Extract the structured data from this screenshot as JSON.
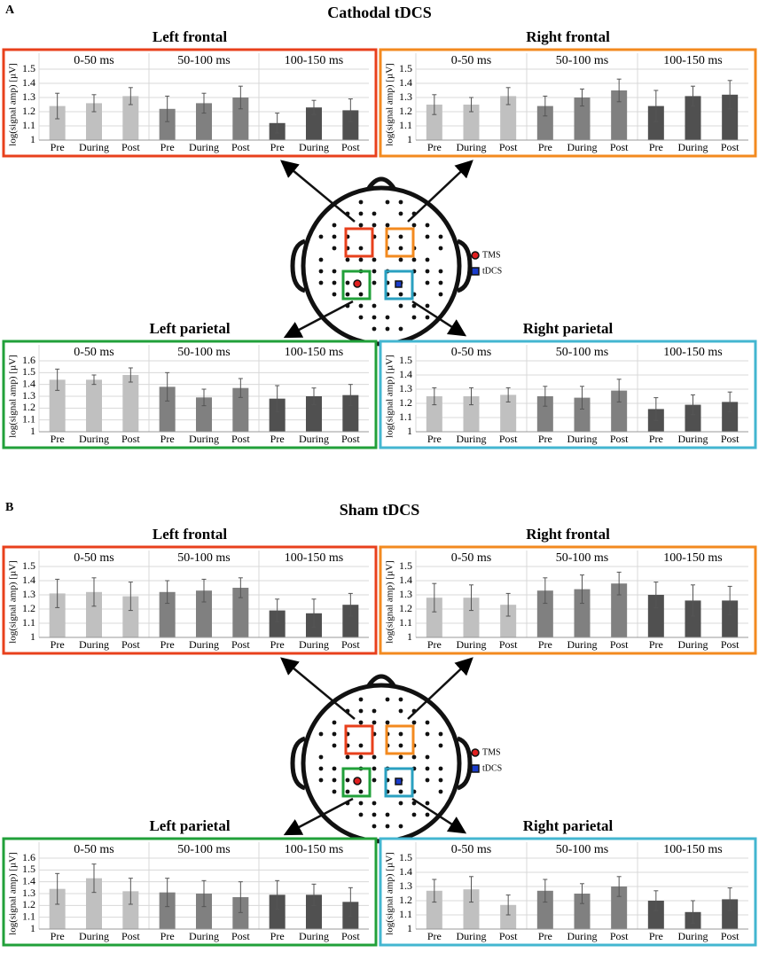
{
  "panels": [
    {
      "letter": "A",
      "title": "Cathodal tDCS"
    },
    {
      "letter": "B",
      "title": "Sham tDCS"
    }
  ],
  "legend": {
    "tms": "TMS",
    "tdcs": "tDCS"
  },
  "chart_data": [
    {
      "type": "bar",
      "title": "Left frontal",
      "ylabel": "log(signal amp) [µV]",
      "border": "#e8401c",
      "ylim": [
        1,
        1.5
      ],
      "yticks": [
        1,
        1.1,
        1.2,
        1.3,
        1.4,
        1.5
      ],
      "windows": [
        {
          "title": "0-50 ms",
          "color": "#c0c0c0",
          "categories": [
            "Pre",
            "During",
            "Post"
          ],
          "values": [
            1.24,
            1.26,
            1.31
          ],
          "errors": [
            0.09,
            0.06,
            0.06
          ]
        },
        {
          "title": "50-100 ms",
          "color": "#808080",
          "categories": [
            "Pre",
            "During",
            "Post"
          ],
          "values": [
            1.22,
            1.26,
            1.3
          ],
          "errors": [
            0.09,
            0.07,
            0.08
          ]
        },
        {
          "title": "100-150 ms",
          "color": "#505050",
          "categories": [
            "Pre",
            "During",
            "Post"
          ],
          "values": [
            1.12,
            1.23,
            1.21
          ],
          "errors": [
            0.07,
            0.05,
            0.08
          ]
        }
      ]
    },
    {
      "type": "bar",
      "title": "Right frontal",
      "ylabel": "log(signal amp) [µV]",
      "border": "#f38a1f",
      "ylim": [
        1,
        1.5
      ],
      "yticks": [
        1,
        1.1,
        1.2,
        1.3,
        1.4,
        1.5
      ],
      "windows": [
        {
          "title": "0-50 ms",
          "color": "#c0c0c0",
          "categories": [
            "Pre",
            "During",
            "Post"
          ],
          "values": [
            1.25,
            1.25,
            1.31
          ],
          "errors": [
            0.07,
            0.05,
            0.06
          ]
        },
        {
          "title": "50-100 ms",
          "color": "#808080",
          "categories": [
            "Pre",
            "During",
            "Post"
          ],
          "values": [
            1.24,
            1.3,
            1.35
          ],
          "errors": [
            0.07,
            0.06,
            0.08
          ]
        },
        {
          "title": "100-150 ms",
          "color": "#505050",
          "categories": [
            "Pre",
            "During",
            "Post"
          ],
          "values": [
            1.24,
            1.31,
            1.32
          ],
          "errors": [
            0.11,
            0.07,
            0.1
          ]
        }
      ]
    },
    {
      "type": "bar",
      "title": "Left parietal",
      "ylabel": "log(signal amp) [µV]",
      "border": "#21a03a",
      "ylim": [
        1,
        1.6
      ],
      "yticks": [
        1,
        1.1,
        1.2,
        1.3,
        1.4,
        1.5,
        1.6
      ],
      "windows": [
        {
          "title": "0-50 ms",
          "color": "#c0c0c0",
          "categories": [
            "Pre",
            "During",
            "Post"
          ],
          "values": [
            1.44,
            1.44,
            1.48
          ],
          "errors": [
            0.09,
            0.04,
            0.06
          ]
        },
        {
          "title": "50-100 ms",
          "color": "#808080",
          "categories": [
            "Pre",
            "During",
            "Post"
          ],
          "values": [
            1.38,
            1.29,
            1.37
          ],
          "errors": [
            0.12,
            0.07,
            0.08
          ]
        },
        {
          "title": "100-150 ms",
          "color": "#505050",
          "categories": [
            "Pre",
            "During",
            "Post"
          ],
          "values": [
            1.28,
            1.3,
            1.31
          ],
          "errors": [
            0.11,
            0.07,
            0.09
          ]
        }
      ]
    },
    {
      "type": "bar",
      "title": "Right parietal",
      "ylabel": "log(signal amp) [µV]",
      "border": "#43b6d0",
      "ylim": [
        1,
        1.5
      ],
      "yticks": [
        1,
        1.1,
        1.2,
        1.3,
        1.4,
        1.5
      ],
      "windows": [
        {
          "title": "0-50 ms",
          "color": "#c0c0c0",
          "categories": [
            "Pre",
            "During",
            "Post"
          ],
          "values": [
            1.25,
            1.25,
            1.26
          ],
          "errors": [
            0.06,
            0.06,
            0.05
          ]
        },
        {
          "title": "50-100 ms",
          "color": "#808080",
          "categories": [
            "Pre",
            "During",
            "Post"
          ],
          "values": [
            1.25,
            1.24,
            1.29
          ],
          "errors": [
            0.07,
            0.08,
            0.08
          ]
        },
        {
          "title": "100-150 ms",
          "color": "#505050",
          "categories": [
            "Pre",
            "During",
            "Post"
          ],
          "values": [
            1.16,
            1.19,
            1.21
          ],
          "errors": [
            0.08,
            0.07,
            0.07
          ]
        }
      ]
    },
    {
      "type": "bar",
      "title": "Left frontal",
      "ylabel": "log(signal amp) [µV]",
      "border": "#e8401c",
      "ylim": [
        1,
        1.5
      ],
      "yticks": [
        1,
        1.1,
        1.2,
        1.3,
        1.4,
        1.5
      ],
      "windows": [
        {
          "title": "0-50 ms",
          "color": "#c0c0c0",
          "categories": [
            "Pre",
            "During",
            "Post"
          ],
          "values": [
            1.31,
            1.32,
            1.29
          ],
          "errors": [
            0.1,
            0.1,
            0.1
          ]
        },
        {
          "title": "50-100 ms",
          "color": "#808080",
          "categories": [
            "Pre",
            "During",
            "Post"
          ],
          "values": [
            1.32,
            1.33,
            1.35
          ],
          "errors": [
            0.08,
            0.08,
            0.07
          ]
        },
        {
          "title": "100-150 ms",
          "color": "#505050",
          "categories": [
            "Pre",
            "During",
            "Post"
          ],
          "values": [
            1.19,
            1.17,
            1.23
          ],
          "errors": [
            0.08,
            0.1,
            0.08
          ]
        }
      ]
    },
    {
      "type": "bar",
      "title": "Right frontal",
      "ylabel": "log(signal amp) [µV]",
      "border": "#f38a1f",
      "ylim": [
        1,
        1.5
      ],
      "yticks": [
        1,
        1.1,
        1.2,
        1.3,
        1.4,
        1.5
      ],
      "windows": [
        {
          "title": "0-50 ms",
          "color": "#c0c0c0",
          "categories": [
            "Pre",
            "During",
            "Post"
          ],
          "values": [
            1.28,
            1.28,
            1.23
          ],
          "errors": [
            0.1,
            0.09,
            0.08
          ]
        },
        {
          "title": "50-100 ms",
          "color": "#808080",
          "categories": [
            "Pre",
            "During",
            "Post"
          ],
          "values": [
            1.33,
            1.34,
            1.38
          ],
          "errors": [
            0.09,
            0.1,
            0.08
          ]
        },
        {
          "title": "100-150 ms",
          "color": "#505050",
          "categories": [
            "Pre",
            "During",
            "Post"
          ],
          "values": [
            1.3,
            1.26,
            1.26
          ],
          "errors": [
            0.09,
            0.11,
            0.1
          ]
        }
      ]
    },
    {
      "type": "bar",
      "title": "Left parietal",
      "ylabel": "log(signal amp) [µV]",
      "border": "#21a03a",
      "ylim": [
        1,
        1.6
      ],
      "yticks": [
        1,
        1.1,
        1.2,
        1.3,
        1.4,
        1.5,
        1.6
      ],
      "windows": [
        {
          "title": "0-50 ms",
          "color": "#c0c0c0",
          "categories": [
            "Pre",
            "During",
            "Post"
          ],
          "values": [
            1.34,
            1.43,
            1.32
          ],
          "errors": [
            0.13,
            0.12,
            0.11
          ]
        },
        {
          "title": "50-100 ms",
          "color": "#808080",
          "categories": [
            "Pre",
            "During",
            "Post"
          ],
          "values": [
            1.31,
            1.3,
            1.27
          ],
          "errors": [
            0.12,
            0.11,
            0.13
          ]
        },
        {
          "title": "100-150 ms",
          "color": "#505050",
          "categories": [
            "Pre",
            "During",
            "Post"
          ],
          "values": [
            1.29,
            1.29,
            1.23
          ],
          "errors": [
            0.12,
            0.09,
            0.12
          ]
        }
      ]
    },
    {
      "type": "bar",
      "title": "Right parietal",
      "ylabel": "log(signal amp) [µV]",
      "border": "#43b6d0",
      "ylim": [
        1,
        1.5
      ],
      "yticks": [
        1,
        1.1,
        1.2,
        1.3,
        1.4,
        1.5
      ],
      "windows": [
        {
          "title": "0-50 ms",
          "color": "#c0c0c0",
          "categories": [
            "Pre",
            "During",
            "Post"
          ],
          "values": [
            1.27,
            1.28,
            1.17
          ],
          "errors": [
            0.08,
            0.09,
            0.07
          ]
        },
        {
          "title": "50-100 ms",
          "color": "#808080",
          "categories": [
            "Pre",
            "During",
            "Post"
          ],
          "values": [
            1.27,
            1.25,
            1.3
          ],
          "errors": [
            0.08,
            0.07,
            0.07
          ]
        },
        {
          "title": "100-150 ms",
          "color": "#505050",
          "categories": [
            "Pre",
            "During",
            "Post"
          ],
          "values": [
            1.2,
            1.12,
            1.21
          ],
          "errors": [
            0.07,
            0.08,
            0.08
          ]
        }
      ]
    }
  ]
}
